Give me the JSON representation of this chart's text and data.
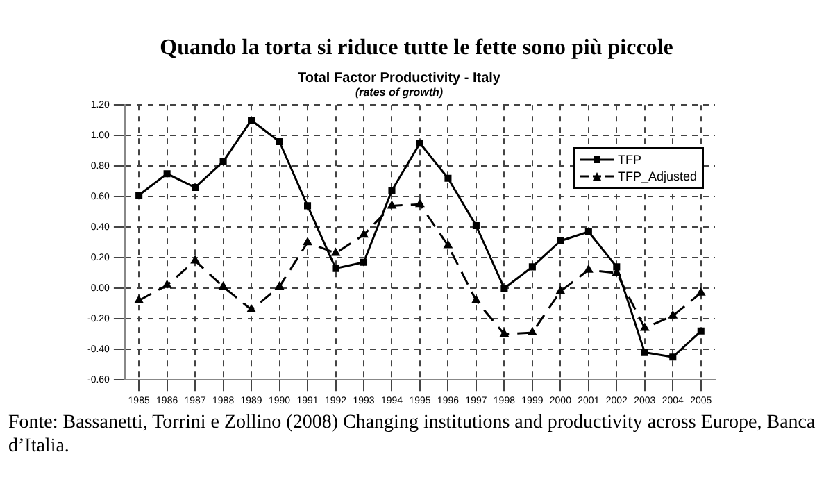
{
  "chart_data": {
    "type": "line",
    "title": "Quando la torta si riduce tutte le fette sono più piccole",
    "subtitle": "Total Factor Productivity - Italy",
    "annotations": [
      "(rates of growth)",
      "Fonte: Bassanetti, Torrini e Zollino (2008) Changing institutions and productivity across Europe, Banca d’Italia."
    ],
    "categories": [
      "1985",
      "1986",
      "1987",
      "1988",
      "1989",
      "1990",
      "1991",
      "1992",
      "1993",
      "1994",
      "1995",
      "1996",
      "1997",
      "1998",
      "1999",
      "2000",
      "2001",
      "2002",
      "2003",
      "2004",
      "2005"
    ],
    "series": [
      {
        "name": "TFP",
        "color": "#000000",
        "marker": "square",
        "line_style": "solid",
        "values": [
          0.61,
          0.75,
          0.66,
          0.83,
          1.1,
          0.96,
          0.54,
          0.13,
          0.17,
          0.64,
          0.95,
          0.72,
          0.41,
          0.0,
          0.14,
          0.31,
          0.37,
          0.14,
          -0.42,
          -0.45,
          -0.28
        ]
      },
      {
        "name": "TFP_Adjusted",
        "color": "#000000",
        "marker": "triangle",
        "line_style": "dashed",
        "values": [
          -0.08,
          0.02,
          0.18,
          0.01,
          -0.14,
          0.01,
          0.3,
          0.23,
          0.35,
          0.54,
          0.55,
          0.28,
          -0.08,
          -0.3,
          -0.29,
          -0.02,
          0.12,
          0.1,
          -0.26,
          -0.18,
          -0.03
        ]
      }
    ],
    "ylim": [
      -0.6,
      1.2
    ],
    "yticks": [
      {
        "value": -0.6,
        "label": "-0.60"
      },
      {
        "value": -0.4,
        "label": "-0.40"
      },
      {
        "value": -0.2,
        "label": "-0.20"
      },
      {
        "value": 0,
        "label": "0.00"
      },
      {
        "value": 0.2,
        "label": "0.20"
      },
      {
        "value": 0.4,
        "label": "0.40"
      },
      {
        "value": 0.6,
        "label": "0.60"
      },
      {
        "value": 0.8,
        "label": "0.80"
      },
      {
        "value": 1.0,
        "label": "1.00"
      },
      {
        "value": 1.2,
        "label": "1.20"
      }
    ],
    "grid": true,
    "legend": "top right"
  }
}
